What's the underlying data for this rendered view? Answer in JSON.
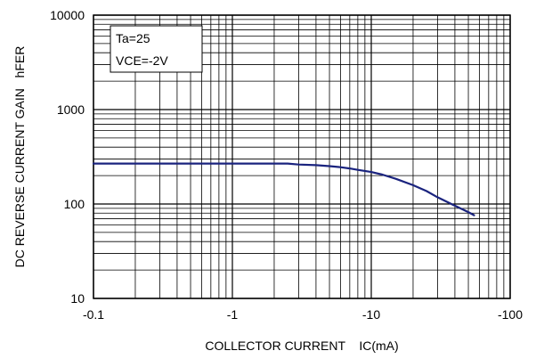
{
  "chart_data": {
    "type": "line",
    "title": "",
    "xlabel": "COLLECTOR CURRENT    IC(mA)",
    "ylabel": "DC REVERSE CURRENT GAIN   hFER",
    "x_scale": "log",
    "y_scale": "log",
    "xlim": [
      -0.1,
      -100
    ],
    "ylim": [
      10,
      10000
    ],
    "x_ticks": [
      -0.1,
      -1,
      -10,
      -100
    ],
    "x_tick_labels": [
      "-0.1",
      "-1",
      "-10",
      "-100"
    ],
    "y_ticks": [
      10,
      100,
      1000,
      10000
    ],
    "y_tick_labels": [
      "10",
      "100",
      "1000",
      "10000"
    ],
    "grid": true,
    "legend": {
      "placement": "top-left",
      "lines": [
        "Ta=25",
        "VCE=-2V"
      ]
    },
    "series": [
      {
        "color": "#1a237e",
        "x": [
          -0.1,
          -0.3,
          -1,
          -2.5,
          -3,
          -4,
          -5,
          -6,
          -7,
          -8,
          -10,
          -12,
          -15,
          -20,
          -25,
          -30,
          -40,
          -50,
          -55
        ],
        "y": [
          268,
          268,
          268,
          268,
          262,
          258,
          252,
          245,
          238,
          230,
          218,
          205,
          185,
          158,
          137,
          118,
          96,
          82,
          76
        ]
      }
    ]
  }
}
